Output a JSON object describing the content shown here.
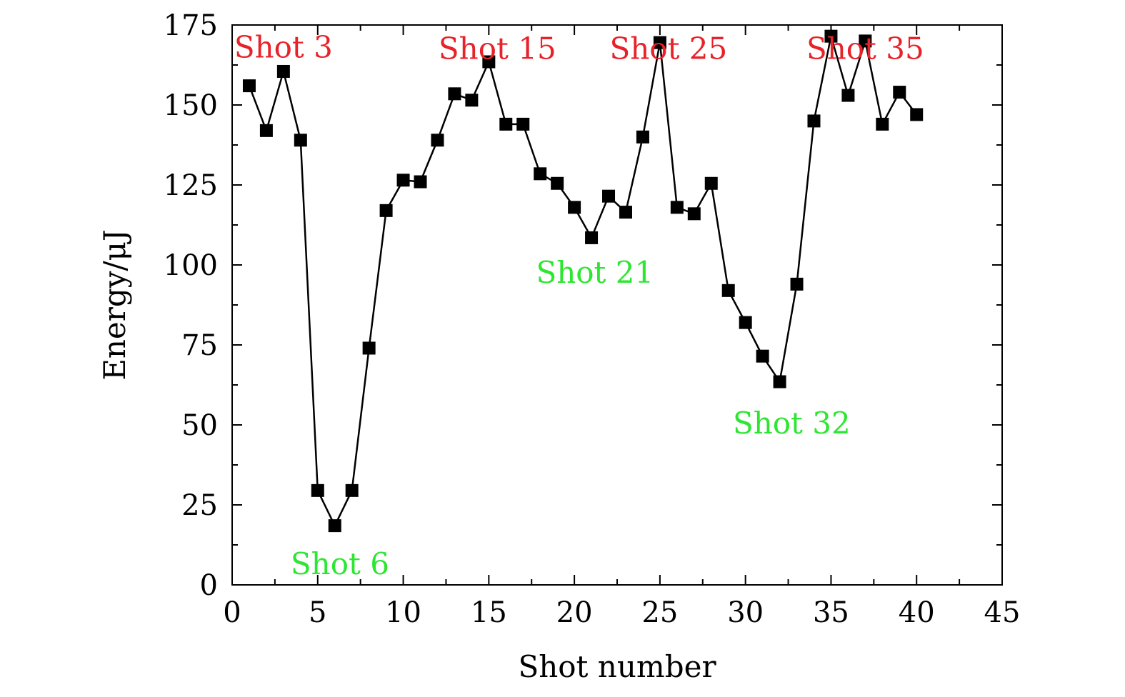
{
  "chart_data": {
    "type": "line",
    "title": "",
    "xlabel": "Shot number",
    "ylabel": "Energy/μJ",
    "xlim": [
      0,
      45
    ],
    "ylim": [
      0,
      175
    ],
    "xticks": [
      0,
      5,
      10,
      15,
      20,
      25,
      30,
      35,
      40,
      45
    ],
    "yticks": [
      0,
      25,
      50,
      75,
      100,
      125,
      150,
      175
    ],
    "grid": false,
    "marker": "square",
    "line_color": "#000000",
    "series": [
      {
        "x": [
          1,
          2,
          3,
          4,
          5,
          6,
          7,
          8,
          9,
          10,
          11,
          12,
          13,
          14,
          15,
          16,
          17,
          18,
          19,
          20,
          21,
          22,
          23,
          24,
          25,
          26,
          27,
          28,
          29,
          30,
          31,
          32,
          33,
          34,
          35,
          36,
          37,
          38,
          39,
          40
        ],
        "values": [
          156,
          142,
          160.5,
          139,
          29.5,
          18.5,
          29.5,
          74,
          117,
          126.5,
          126,
          139,
          153.5,
          151.5,
          163.5,
          144,
          144,
          128.5,
          125.5,
          118,
          108.5,
          121.5,
          116.5,
          140,
          169.5,
          118,
          116,
          125.5,
          92,
          82,
          71.5,
          63.5,
          94,
          145,
          171.5,
          153,
          170,
          144,
          154,
          147
        ]
      }
    ],
    "annotations": [
      {
        "text": "Shot 3",
        "x": 3,
        "y": 168,
        "color": "#e8222a"
      },
      {
        "text": "Shot 15",
        "x": 15.5,
        "y": 167.5,
        "color": "#e8222a"
      },
      {
        "text": "Shot 25",
        "x": 25.5,
        "y": 167.5,
        "color": "#e8222a"
      },
      {
        "text": "Shot 35",
        "x": 37,
        "y": 167.5,
        "color": "#e8222a"
      },
      {
        "text": "Shot 6",
        "x": 6.3,
        "y": 6.5,
        "color": "#2de632"
      },
      {
        "text": "Shot 21",
        "x": 21.2,
        "y": 97.5,
        "color": "#2de632"
      },
      {
        "text": "Shot 32",
        "x": 32.7,
        "y": 50.5,
        "color": "#2de632"
      }
    ]
  }
}
